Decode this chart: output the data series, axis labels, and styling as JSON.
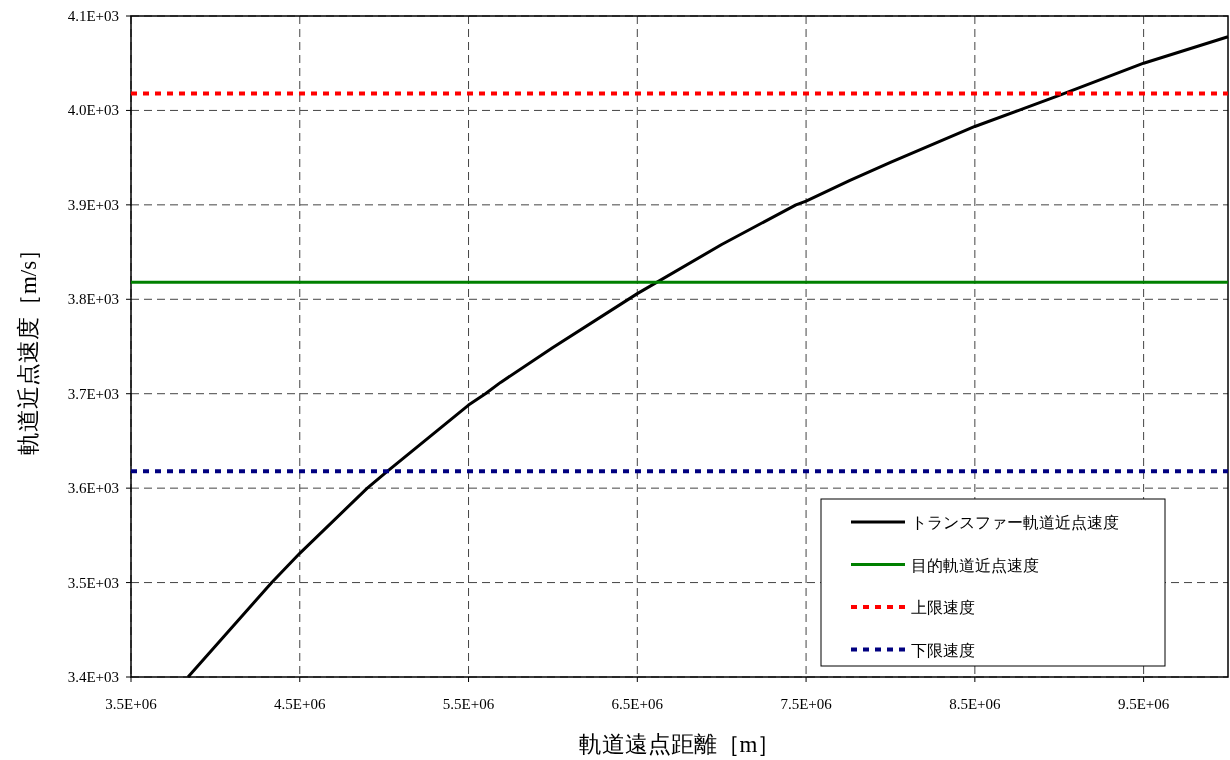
{
  "chart_data": {
    "type": "line",
    "xlabel": "軌道遠点距離［m］",
    "ylabel": "軌道近点速度［m/s］",
    "xlim": [
      3500000,
      10000000
    ],
    "xticks": [
      {
        "value": 3500000,
        "label": "3.5E+06"
      },
      {
        "value": 4500000,
        "label": "4.5E+06"
      },
      {
        "value": 5500000,
        "label": "5.5E+06"
      },
      {
        "value": 6500000,
        "label": "6.5E+06"
      },
      {
        "value": 7500000,
        "label": "7.5E+06"
      },
      {
        "value": 8500000,
        "label": "8.5E+06"
      },
      {
        "value": 9500000,
        "label": "9.5E+06"
      }
    ],
    "ylim": [
      3400,
      4100
    ],
    "yticks": [
      {
        "value": 3400,
        "label": "3.4E+03"
      },
      {
        "value": 3500,
        "label": "3.5E+03"
      },
      {
        "value": 3600,
        "label": "3.6E+03"
      },
      {
        "value": 3700,
        "label": "3.7E+03"
      },
      {
        "value": 3800,
        "label": "3.8E+03"
      },
      {
        "value": 3900,
        "label": "3.9E+03"
      },
      {
        "value": 4000,
        "label": "4.0E+03"
      },
      {
        "value": 4100,
        "label": "4.1E+03"
      }
    ],
    "grid": true,
    "legend": "bottom right",
    "series": [
      {
        "name": "トランスファー軌道近点速度",
        "color": "#000000",
        "line_style": "solid",
        "x": [
          3838000,
          4334000,
          4500000,
          4900000,
          5020000,
          5500000,
          5600000,
          5690000,
          6000000,
          6500000,
          7000000,
          7440000,
          7500000,
          7760000,
          8000000,
          8500000,
          8760000,
          9000000,
          9500000,
          10000000
        ],
        "values": [
          3400,
          3500,
          3531,
          3600,
          3618,
          3688,
          3700,
          3712,
          3749,
          3806,
          3858,
          3900,
          3904,
          3926,
          3945,
          3983,
          4000,
          4016,
          4050,
          4078
        ]
      },
      {
        "name": "目的軌道近点速度",
        "color": "#008000",
        "line_style": "solid",
        "x": [
          3500000,
          10000000
        ],
        "values": [
          3818,
          3818
        ]
      },
      {
        "name": "上限速度",
        "color": "#ff0000",
        "line_style": "dotted",
        "x": [
          3500000,
          10000000
        ],
        "values": [
          4018,
          4018
        ]
      },
      {
        "name": "下限速度",
        "color": "#000080",
        "line_style": "dotted",
        "x": [
          3500000,
          10000000
        ],
        "values": [
          3618,
          3618
        ]
      }
    ]
  }
}
